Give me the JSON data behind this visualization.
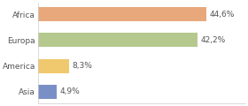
{
  "categories": [
    "Africa",
    "Europa",
    "America",
    "Asia"
  ],
  "values": [
    44.6,
    42.2,
    8.3,
    4.9
  ],
  "labels": [
    "44,6%",
    "42,2%",
    "8,3%",
    "4,9%"
  ],
  "bar_colors": [
    "#e8a87c",
    "#b5c98e",
    "#f0c96e",
    "#7b8fc7"
  ],
  "background_color": "#ffffff",
  "xlim": [
    0,
    55
  ],
  "label_fontsize": 6.5,
  "tick_fontsize": 6.5,
  "bar_height": 0.55
}
